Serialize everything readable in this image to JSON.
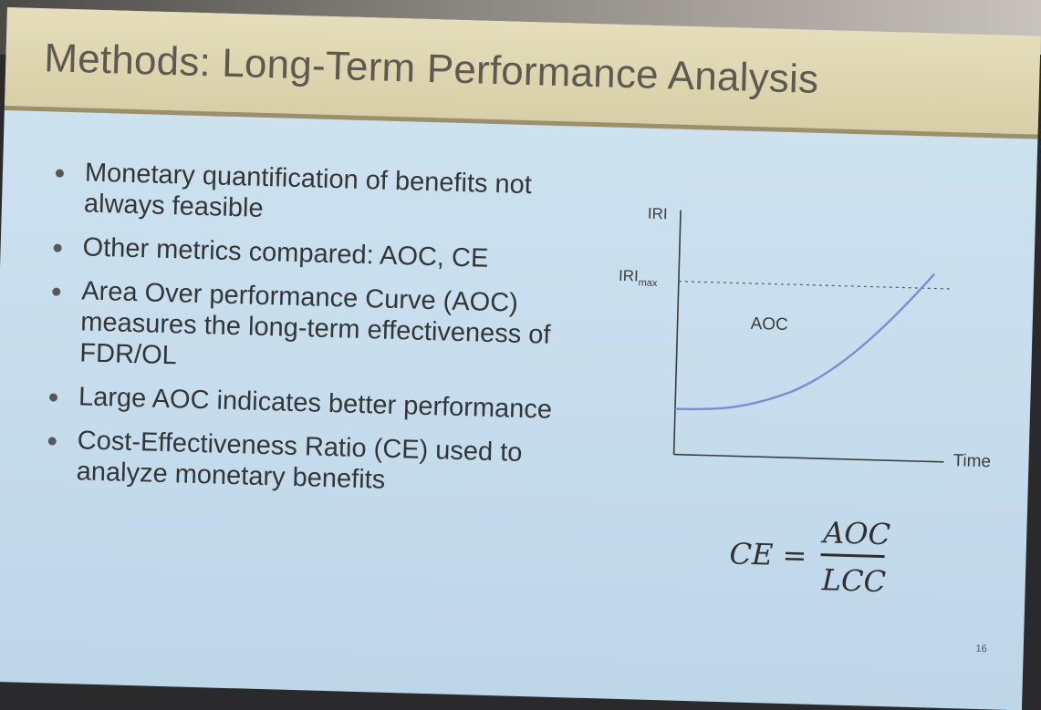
{
  "slide": {
    "title": "Methods: Long-Term Performance Analysis",
    "bullets": [
      "Monetary quantification of benefits not always feasible",
      "Other metrics compared: AOC, CE",
      "Area Over performance Curve (AOC) measures the long-term effectiveness of FDR/OL",
      "Large AOC indicates better performance",
      "Cost-Effectiveness Ratio (CE) used to analyze monetary benefits"
    ],
    "page_number": "16"
  },
  "diagram": {
    "y_axis_label": "IRI",
    "x_axis_label": "Time",
    "threshold_label_main": "IRI",
    "threshold_label_sub": "max",
    "area_label": "AOC",
    "curve_color": "#7d8ad6"
  },
  "formula": {
    "lhs": "CE =",
    "numerator": "AOC",
    "denominator": "LCC"
  }
}
